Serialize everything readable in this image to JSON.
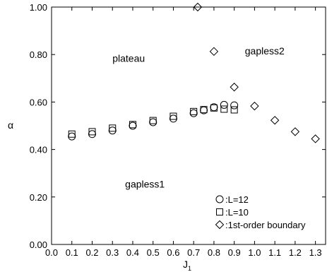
{
  "chart_data": {
    "type": "scatter",
    "xlabel": "J",
    "xlabel_subscript": "1",
    "ylabel": "α",
    "xlim": [
      0.0,
      1.35
    ],
    "ylim": [
      0.0,
      1.0
    ],
    "xticks": [
      0.0,
      0.1,
      0.2,
      0.3,
      0.4,
      0.5,
      0.6,
      0.7,
      0.8,
      0.9,
      1.0,
      1.1,
      1.2,
      1.3
    ],
    "xtick_labels": [
      "0.0",
      "0.1",
      "0.2",
      "0.3",
      "0.4",
      "0.5",
      "0.6",
      "0.7",
      "0.8",
      "0.9",
      "1.0",
      "1.1",
      "1.2",
      "1.3"
    ],
    "yticks": [
      0.0,
      0.2,
      0.4,
      0.6,
      0.8,
      1.0
    ],
    "ytick_labels": [
      "0.00",
      "0.20",
      "0.40",
      "0.60",
      "0.80",
      "1.00"
    ],
    "annotations": [
      {
        "text": "plateau",
        "x": 0.38,
        "y": 0.77
      },
      {
        "text": "gapless2",
        "x": 1.05,
        "y": 0.8
      },
      {
        "text": "gapless1",
        "x": 0.46,
        "y": 0.24
      }
    ],
    "legend": {
      "position": "bottom-right",
      "entries": [
        {
          "marker": "circle",
          "label": ":L=12"
        },
        {
          "marker": "square",
          "label": ":L=10"
        },
        {
          "marker": "diamond",
          "label": ":1st-order boundary"
        }
      ]
    },
    "series": [
      {
        "name": "L=12",
        "marker": "circle",
        "points": [
          [
            0.1,
            0.455
          ],
          [
            0.2,
            0.465
          ],
          [
            0.3,
            0.48
          ],
          [
            0.4,
            0.5
          ],
          [
            0.5,
            0.515
          ],
          [
            0.6,
            0.53
          ],
          [
            0.7,
            0.553
          ],
          [
            0.75,
            0.565
          ],
          [
            0.8,
            0.578
          ],
          [
            0.85,
            0.588
          ],
          [
            0.9,
            0.586
          ]
        ]
      },
      {
        "name": "L=10",
        "marker": "square",
        "points": [
          [
            0.1,
            0.465
          ],
          [
            0.2,
            0.475
          ],
          [
            0.3,
            0.49
          ],
          [
            0.4,
            0.505
          ],
          [
            0.5,
            0.522
          ],
          [
            0.6,
            0.54
          ],
          [
            0.7,
            0.56
          ],
          [
            0.75,
            0.568
          ],
          [
            0.8,
            0.575
          ],
          [
            0.85,
            0.57
          ],
          [
            0.9,
            0.567
          ]
        ]
      },
      {
        "name": "1st-order boundary",
        "marker": "diamond",
        "points": [
          [
            0.72,
            1.0
          ],
          [
            0.8,
            0.813
          ],
          [
            0.9,
            0.663
          ],
          [
            1.0,
            0.583
          ],
          [
            1.1,
            0.523
          ],
          [
            1.2,
            0.475
          ],
          [
            1.3,
            0.445
          ]
        ]
      }
    ]
  }
}
